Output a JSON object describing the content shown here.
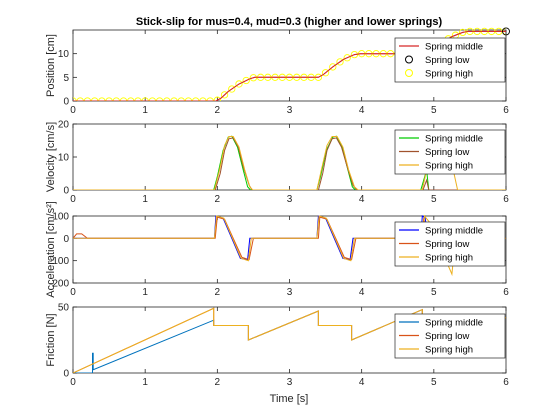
{
  "figure": {
    "title": "Stick-slip for mus=0.4, mud=0.3 (higher and lower springs)",
    "xlabel": "Time [s]"
  },
  "chart_data": [
    {
      "type": "line",
      "ylabel": "Position [cm]",
      "xlim": [
        0,
        6
      ],
      "ylim": [
        0,
        15
      ],
      "xticks": [
        0,
        1,
        2,
        3,
        4,
        5,
        6
      ],
      "yticks": [
        0,
        5,
        10
      ],
      "legend_position": "right",
      "series": [
        {
          "name": "Spring middle",
          "color": "#d62728",
          "style": "line",
          "x": [
            0,
            1.98,
            2.05,
            2.15,
            2.3,
            2.45,
            2.52,
            3.4,
            3.47,
            3.6,
            3.75,
            3.9,
            3.98,
            4.88,
            4.95,
            5.1,
            5.25,
            5.4,
            5.48,
            6.0
          ],
          "y": [
            0,
            0,
            0.6,
            2.0,
            3.6,
            4.7,
            5.0,
            5.0,
            5.6,
            7.2,
            8.8,
            9.8,
            10.0,
            10.0,
            10.6,
            12.2,
            13.6,
            14.5,
            14.7,
            14.7
          ]
        },
        {
          "name": "Spring low",
          "color": "#000000",
          "style": "circle",
          "x": [
            6.0
          ],
          "y": [
            14.7
          ]
        },
        {
          "name": "Spring high",
          "color": "#ffff00",
          "style": "circle",
          "x": [
            0,
            1.98,
            2.05,
            2.15,
            2.3,
            2.45,
            2.52,
            3.4,
            3.47,
            3.6,
            3.75,
            3.9,
            3.98,
            4.88,
            4.95,
            5.1,
            5.25,
            5.4,
            5.48,
            6.0
          ],
          "y": [
            0,
            0,
            0.6,
            2.0,
            3.6,
            4.7,
            5.0,
            5.0,
            5.6,
            7.2,
            8.8,
            9.8,
            10.0,
            10.0,
            10.6,
            12.2,
            13.6,
            14.5,
            14.7,
            14.7
          ]
        }
      ]
    },
    {
      "type": "line",
      "ylabel": "Velocity [cm/s]",
      "xlim": [
        0,
        6
      ],
      "ylim": [
        0,
        20
      ],
      "xticks": [
        0,
        1,
        2,
        3,
        4,
        5,
        6
      ],
      "yticks": [
        0,
        10,
        20
      ],
      "legend_position": "right",
      "series": [
        {
          "name": "Spring middle",
          "color": "#00cc00",
          "style": "line",
          "x": [
            0,
            1.95,
            2.0,
            2.08,
            2.15,
            2.2,
            2.28,
            2.36,
            2.42,
            2.46,
            3.38,
            3.43,
            3.51,
            3.6,
            3.65,
            3.73,
            3.81,
            3.87,
            3.91,
            4.82,
            4.86,
            4.9,
            4.93,
            6.0
          ],
          "y": [
            0,
            0,
            4,
            12,
            16,
            16.3,
            13,
            6,
            1,
            0,
            0,
            4,
            12,
            16,
            16.3,
            13,
            6,
            1,
            0,
            0,
            3,
            6,
            0,
            0
          ]
        },
        {
          "name": "Spring low",
          "color": "#a0522d",
          "style": "line",
          "x": [
            0,
            1.97,
            2.04,
            2.1,
            2.16,
            2.22,
            2.29,
            2.36,
            2.44,
            2.48,
            3.4,
            3.46,
            3.52,
            3.59,
            3.65,
            3.72,
            3.8,
            3.88,
            3.93,
            4.85,
            4.9,
            4.93,
            6.0
          ],
          "y": [
            0,
            0,
            5,
            12,
            15.5,
            15.8,
            13,
            7,
            1.5,
            0,
            0,
            5,
            12,
            15.5,
            15.8,
            13,
            7,
            1.5,
            0,
            0,
            3,
            0,
            0
          ]
        },
        {
          "name": "Spring high",
          "color": "#edb120",
          "style": "line",
          "x": [
            0,
            1.96,
            2.03,
            2.1,
            2.16,
            2.22,
            2.3,
            2.38,
            2.45,
            2.49,
            3.38,
            3.44,
            3.52,
            3.59,
            3.66,
            3.74,
            3.82,
            3.9,
            3.95,
            4.84,
            4.9,
            5.0,
            5.1,
            5.2,
            5.28,
            5.33,
            6.0
          ],
          "y": [
            0,
            0,
            6,
            13.5,
            16.2,
            16.2,
            13,
            6,
            1,
            0,
            0,
            6,
            13.5,
            16.2,
            16.2,
            13,
            6,
            1,
            0,
            0,
            6,
            12,
            15,
            12,
            5,
            0,
            0
          ]
        }
      ]
    },
    {
      "type": "line",
      "ylabel": "Acceleration [cm/s²]",
      "xlim": [
        0,
        6
      ],
      "ylim": [
        -200,
        100
      ],
      "xticks": [
        0,
        1,
        2,
        3,
        4,
        5,
        6
      ],
      "yticks": [
        -200,
        -100,
        0,
        100
      ],
      "legend_position": "right",
      "series": [
        {
          "name": "Spring middle",
          "color": "#0000ff",
          "style": "line",
          "x": [
            0,
            1.96,
            1.98,
            2.08,
            2.2,
            2.32,
            2.42,
            2.45,
            3.38,
            3.4,
            3.5,
            3.62,
            3.74,
            3.84,
            3.88,
            4.82,
            4.84,
            4.88,
            4.92,
            6.0
          ],
          "y": [
            0,
            0,
            100,
            90,
            0,
            -90,
            -95,
            0,
            0,
            100,
            90,
            0,
            -90,
            -95,
            0,
            0,
            100,
            90,
            0,
            0
          ]
        },
        {
          "name": "Spring low",
          "color": "#d95319",
          "style": "line",
          "x": [
            0,
            0.05,
            0.12,
            0.2,
            1.97,
            2.0,
            2.1,
            2.22,
            2.34,
            2.44,
            2.5,
            3.4,
            3.42,
            3.52,
            3.64,
            3.76,
            3.86,
            3.92,
            4.84,
            4.86,
            4.92,
            6.0
          ],
          "y": [
            0,
            20,
            20,
            0,
            0,
            95,
            85,
            0,
            -85,
            -95,
            0,
            0,
            95,
            85,
            0,
            -85,
            -95,
            0,
            0,
            90,
            0,
            0
          ]
        },
        {
          "name": "Spring high",
          "color": "#edb120",
          "style": "line",
          "x": [
            0,
            1.96,
            1.99,
            2.09,
            2.21,
            2.33,
            2.43,
            2.47,
            3.38,
            3.41,
            3.51,
            3.63,
            3.75,
            3.85,
            3.9,
            4.84,
            4.87,
            4.97,
            5.07,
            5.17,
            5.25,
            5.3,
            6.0
          ],
          "y": [
            0,
            0,
            100,
            90,
            0,
            -90,
            -100,
            0,
            0,
            100,
            90,
            0,
            -90,
            -100,
            0,
            0,
            100,
            60,
            0,
            -100,
            -160,
            0,
            0
          ]
        }
      ]
    },
    {
      "type": "line",
      "ylabel": "Friction [N]",
      "xlim": [
        0,
        6
      ],
      "ylim": [
        0,
        50
      ],
      "xticks": [
        0,
        1,
        2,
        3,
        4,
        5,
        6
      ],
      "yticks": [
        0,
        50
      ],
      "legend_position": "right",
      "series": [
        {
          "name": "Spring middle",
          "color": "#0072bd",
          "style": "line",
          "x": [
            0,
            0.27,
            0.27,
            0.28,
            0.28,
            1.95,
            1.95,
            2.43,
            2.43,
            3.4,
            3.4,
            3.86,
            3.86,
            4.84,
            4.84,
            4.88
          ],
          "y": [
            0,
            0,
            15,
            15,
            2.5,
            40,
            36,
            36,
            25,
            47,
            36,
            36,
            25,
            48,
            42,
            43
          ]
        },
        {
          "name": "Spring low",
          "color": "#d95319",
          "style": "line",
          "x": [
            0,
            1.95,
            1.95,
            2.43,
            2.43,
            3.4,
            3.4,
            3.86,
            3.86,
            4.84,
            4.84,
            5.35,
            5.35,
            6.0
          ],
          "y": [
            0,
            49,
            36,
            36,
            25,
            47,
            36,
            36,
            25,
            48,
            36,
            36,
            27,
            42
          ]
        },
        {
          "name": "Spring high",
          "color": "#edb120",
          "style": "line",
          "x": [
            0,
            1.95,
            1.95,
            2.43,
            2.43,
            3.4,
            3.4,
            3.86,
            3.86,
            4.84,
            4.84,
            5.35,
            5.35,
            6.0
          ],
          "y": [
            0,
            49,
            36,
            36,
            25,
            47,
            36,
            36,
            25,
            48,
            36,
            36,
            27,
            42
          ]
        }
      ]
    }
  ]
}
